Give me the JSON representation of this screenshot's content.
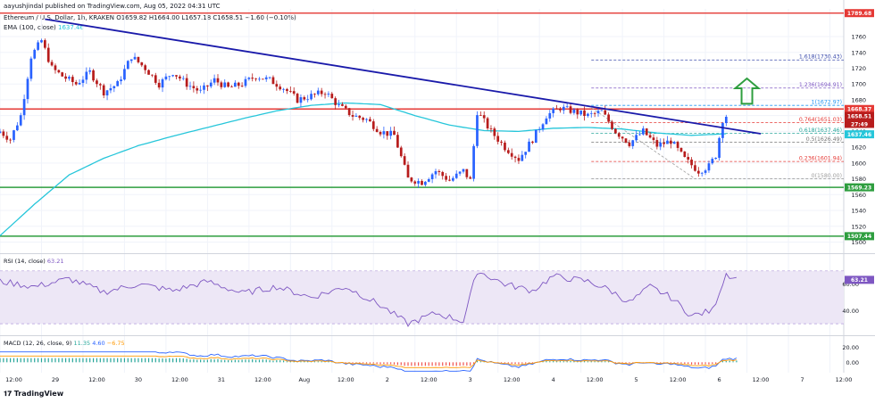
{
  "header": {
    "publisher_line": "aayushjindal published on TradingView.com, Aug 05, 2022 04:31 UTC",
    "symbol_line": "Ethereum / U.S. Dollar, 1h, KRAKEN",
    "ohlc": "O1659.82 H1664.00 L1657.18 C1658.51 −1.60 (−0.10%)",
    "ema_label": "EMA (100, close)",
    "ema_value": "1637.46"
  },
  "brand": "TradingView",
  "colors": {
    "up": "#2962ff",
    "down": "#b71c1c",
    "ema": "#26c6da",
    "trendline": "#1a1aaa",
    "resistance": "#e53935",
    "support": "#2e9e3f",
    "arrow": "#2e9e3f",
    "rsi": "#7e57c2",
    "rsi_band": "#ede7f6",
    "macd": "#2962ff",
    "signal": "#ff9800"
  },
  "chart_data": [
    {
      "type": "candlestick",
      "title": "Ethereum / U.S. Dollar, 1h, KRAKEN",
      "x_ticks": [
        "12:00",
        "29",
        "12:00",
        "30",
        "12:00",
        "31",
        "12:00",
        "Aug",
        "12:00",
        "2",
        "12:00",
        "3",
        "12:00",
        "4",
        "12:00",
        "5",
        "12:00",
        "6",
        "12:00",
        "7",
        "12:00"
      ],
      "y_ticks": [
        1500,
        1520,
        1540,
        1560,
        1580,
        1600,
        1620,
        1640,
        1660,
        1680,
        1700,
        1720,
        1740,
        1760
      ],
      "ylim": [
        1487,
        1795
      ],
      "hourly_close_waypoints": [
        [
          0,
          1640
        ],
        [
          3,
          1630
        ],
        [
          6,
          1660
        ],
        [
          9,
          1735
        ],
        [
          12,
          1755
        ],
        [
          15,
          1720
        ],
        [
          18,
          1710
        ],
        [
          22,
          1700
        ],
        [
          26,
          1715
        ],
        [
          30,
          1690
        ],
        [
          34,
          1700
        ],
        [
          38,
          1735
        ],
        [
          42,
          1720
        ],
        [
          46,
          1700
        ],
        [
          50,
          1715
        ],
        [
          54,
          1700
        ],
        [
          58,
          1690
        ],
        [
          62,
          1705
        ],
        [
          66,
          1695
        ],
        [
          70,
          1700
        ],
        [
          74,
          1710
        ],
        [
          78,
          1705
        ],
        [
          82,
          1695
        ],
        [
          86,
          1680
        ],
        [
          90,
          1685
        ],
        [
          94,
          1690
        ],
        [
          98,
          1672
        ],
        [
          102,
          1660
        ],
        [
          106,
          1655
        ],
        [
          110,
          1640
        ],
        [
          114,
          1635
        ],
        [
          118,
          1580
        ],
        [
          122,
          1576
        ],
        [
          126,
          1590
        ],
        [
          130,
          1578
        ],
        [
          134,
          1590
        ],
        [
          136,
          1578
        ],
        [
          138,
          1665
        ],
        [
          142,
          1640
        ],
        [
          146,
          1620
        ],
        [
          150,
          1605
        ],
        [
          154,
          1630
        ],
        [
          158,
          1660
        ],
        [
          162,
          1670
        ],
        [
          166,
          1665
        ],
        [
          170,
          1660
        ],
        [
          174,
          1665
        ],
        [
          178,
          1640
        ],
        [
          182,
          1625
        ],
        [
          186,
          1640
        ],
        [
          190,
          1622
        ],
        [
          194,
          1628
        ],
        [
          198,
          1605
        ],
        [
          202,
          1590
        ],
        [
          205,
          1596
        ],
        [
          207,
          1610
        ],
        [
          209,
          1655
        ],
        [
          210,
          1664
        ]
      ],
      "last_close": 1658.51,
      "ema": {
        "name": "EMA (100, close)",
        "waypoints": [
          [
            0,
            1508
          ],
          [
            10,
            1548
          ],
          [
            20,
            1585
          ],
          [
            30,
            1606
          ],
          [
            40,
            1622
          ],
          [
            50,
            1634
          ],
          [
            60,
            1645
          ],
          [
            70,
            1656
          ],
          [
            80,
            1666
          ],
          [
            90,
            1673
          ],
          [
            100,
            1676
          ],
          [
            110,
            1674
          ],
          [
            120,
            1660
          ],
          [
            130,
            1648
          ],
          [
            140,
            1641
          ],
          [
            150,
            1640
          ],
          [
            160,
            1644
          ],
          [
            170,
            1645
          ],
          [
            180,
            1643
          ],
          [
            190,
            1638
          ],
          [
            200,
            1635
          ],
          [
            210,
            1637
          ]
        ]
      },
      "trendline": {
        "from": [
          13,
          1782
        ],
        "to": [
          220,
          1637
        ]
      },
      "levels": [
        {
          "name": "resistance-top",
          "value": 1789.68,
          "label": "1789.68",
          "color": "#e53935"
        },
        {
          "name": "resistance",
          "value": 1668.37,
          "label": "1668.37",
          "color": "#e53935"
        },
        {
          "name": "support",
          "value": 1569.23,
          "label": "1569.23",
          "color": "#2e9e3f"
        },
        {
          "name": "support-low",
          "value": 1507.44,
          "label": "1507.44",
          "color": "#2e9e3f"
        }
      ],
      "price_tags": [
        {
          "value": 1658.51,
          "label": "1658.51",
          "color": "#b71c1c"
        },
        {
          "value": 1651.03,
          "label": "27:49",
          "color": "#b71c1c"
        },
        {
          "value": 1637.46,
          "label": "1637.46",
          "color": "#26c6da"
        }
      ],
      "fibonacci": {
        "x_from": 171,
        "x_to": 244,
        "levels": [
          {
            "ratio": 0,
            "value": 1580.0,
            "label": "0(1580.00)",
            "color": "#9e9e9e"
          },
          {
            "ratio": 0.236,
            "value": 1601.94,
            "label": "0.236(1601.94)",
            "color": "#e53935"
          },
          {
            "ratio": 0.5,
            "value": 1626.49,
            "label": "0.5(1626.49)",
            "color": "#757575"
          },
          {
            "ratio": 0.618,
            "value": 1637.46,
            "label": "0.618(1637.46)",
            "color": "#26a69a"
          },
          {
            "ratio": 0.764,
            "value": 1651.03,
            "label": "0.764(1651.03)",
            "color": "#e53935"
          },
          {
            "ratio": 1,
            "value": 1672.97,
            "label": "1(1672.97)",
            "color": "#2196f3"
          },
          {
            "ratio": 1.236,
            "value": 1694.91,
            "label": "1.236(1694.91)",
            "color": "#7e57c2"
          },
          {
            "ratio": 1.618,
            "value": 1730.43,
            "label": "1.618(1730.43)",
            "color": "#3949ab"
          }
        ]
      },
      "arrow": {
        "direction": "up",
        "hour": 216,
        "from": 1675,
        "to": 1707
      }
    },
    {
      "type": "line",
      "name": "RSI",
      "title": "RSI (14, close)",
      "value_label": "63.21",
      "y_ticks": [
        40,
        60
      ],
      "ylim": [
        22,
        82
      ],
      "band": [
        30,
        70
      ],
      "waypoints": [
        [
          0,
          62
        ],
        [
          10,
          58
        ],
        [
          20,
          64
        ],
        [
          30,
          54
        ],
        [
          40,
          60
        ],
        [
          50,
          55
        ],
        [
          60,
          62
        ],
        [
          70,
          53
        ],
        [
          80,
          58
        ],
        [
          90,
          50
        ],
        [
          100,
          58
        ],
        [
          110,
          44
        ],
        [
          118,
          30
        ],
        [
          126,
          38
        ],
        [
          134,
          32
        ],
        [
          138,
          70
        ],
        [
          146,
          60
        ],
        [
          154,
          55
        ],
        [
          160,
          66
        ],
        [
          170,
          62
        ],
        [
          176,
          56
        ],
        [
          182,
          46
        ],
        [
          188,
          58
        ],
        [
          194,
          50
        ],
        [
          200,
          36
        ],
        [
          206,
          40
        ],
        [
          210,
          68
        ],
        [
          213,
          64
        ]
      ]
    },
    {
      "type": "bar",
      "name": "MACD",
      "title": "MACD (12, 26, close, 9)",
      "values_label": [
        "11.35",
        "4.60",
        "−6.75"
      ],
      "y_ticks": [
        0.0,
        20.0
      ],
      "ylim": [
        -14,
        34
      ]
    }
  ]
}
